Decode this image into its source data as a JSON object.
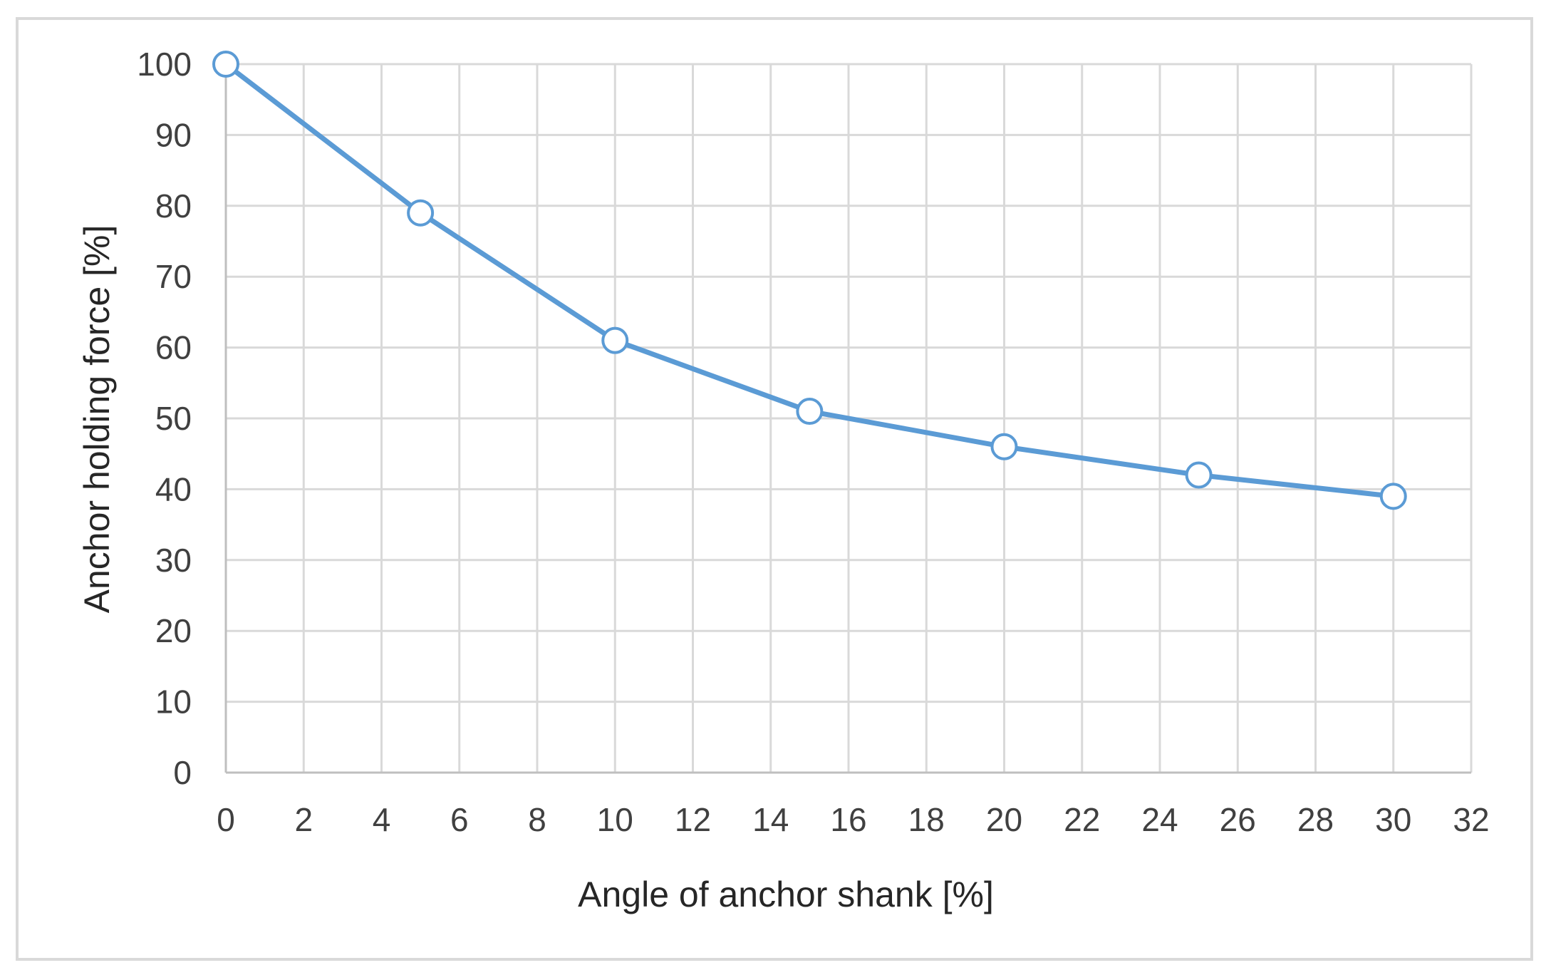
{
  "chart_data": {
    "type": "line",
    "title": "",
    "xlabel": "Angle of anchor shank [%]",
    "ylabel": "Anchor holding force [%]",
    "xlim": [
      0,
      32
    ],
    "ylim": [
      0,
      100
    ],
    "x_ticks": [
      0,
      2,
      4,
      6,
      8,
      10,
      12,
      14,
      16,
      18,
      20,
      22,
      24,
      26,
      28,
      30,
      32
    ],
    "y_ticks": [
      0,
      10,
      20,
      30,
      40,
      50,
      60,
      70,
      80,
      90,
      100
    ],
    "grid": true,
    "legend": "none",
    "series": [
      {
        "x": [
          0,
          5,
          10,
          15,
          20,
          25,
          30
        ],
        "values": [
          100,
          79,
          61,
          51,
          46,
          42,
          39
        ],
        "color": "#5b9bd5",
        "marker": "open-circle"
      }
    ]
  }
}
